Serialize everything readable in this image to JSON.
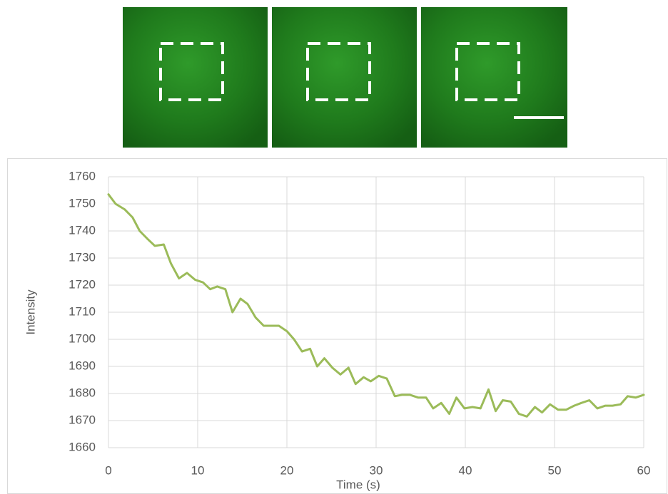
{
  "chart_data": {
    "type": "line",
    "x_label": "Time (s)",
    "y_label": "Intensity",
    "x": [
      0,
      0.8,
      1.8,
      2.7,
      3.5,
      4.4,
      5.2,
      6.2,
      7.0,
      7.9,
      8.8,
      9.7,
      10.6,
      11.4,
      12.2,
      13.1,
      13.9,
      14.8,
      15.6,
      16.5,
      17.4,
      18.2,
      19.1,
      20.0,
      20.8,
      21.7,
      22.6,
      23.4,
      24.2,
      25.1,
      26.0,
      26.9,
      27.7,
      28.6,
      29.4,
      30.3,
      31.2,
      32.1,
      32.9,
      33.8,
      34.7,
      35.6,
      36.4,
      37.3,
      38.2,
      39.0,
      39.9,
      40.8,
      41.7,
      42.6,
      43.4,
      44.2,
      45.1,
      46.0,
      46.9,
      47.8,
      48.6,
      49.5,
      50.4,
      51.3,
      52.2,
      53.0,
      53.9,
      54.8,
      55.7,
      56.5,
      57.4,
      58.2,
      59.1,
      60.0
    ],
    "values": [
      1753.5,
      1750,
      1748,
      1745,
      1740,
      1737,
      1734.5,
      1735,
      1728,
      1722.5,
      1724.5,
      1722,
      1721,
      1718.5,
      1719.5,
      1718.5,
      1710,
      1715,
      1713,
      1708,
      1705,
      1705,
      1705,
      1703,
      1700,
      1695.5,
      1696.5,
      1690,
      1693,
      1689.5,
      1687,
      1689.5,
      1683.5,
      1686,
      1684.5,
      1686.5,
      1685.5,
      1679,
      1679.5,
      1679.5,
      1678.5,
      1678.5,
      1674.5,
      1676.5,
      1672.5,
      1678.5,
      1674.5,
      1675,
      1674.5,
      1681.5,
      1673.5,
      1677.5,
      1677,
      1672.5,
      1671.5,
      1675,
      1673,
      1676,
      1674,
      1674,
      1675.5,
      1676.5,
      1677.5,
      1674.5,
      1675.5,
      1675.5,
      1676,
      1679,
      1678.5,
      1679.5
    ],
    "color": "#9bbb59",
    "xlim": [
      0,
      60
    ],
    "xticks": [
      0,
      10,
      20,
      30,
      40,
      50,
      60
    ],
    "ylim": [
      1660,
      1760
    ],
    "yticks": [
      1660,
      1670,
      1680,
      1690,
      1700,
      1710,
      1720,
      1730,
      1740,
      1750,
      1760
    ],
    "grid": true
  }
}
